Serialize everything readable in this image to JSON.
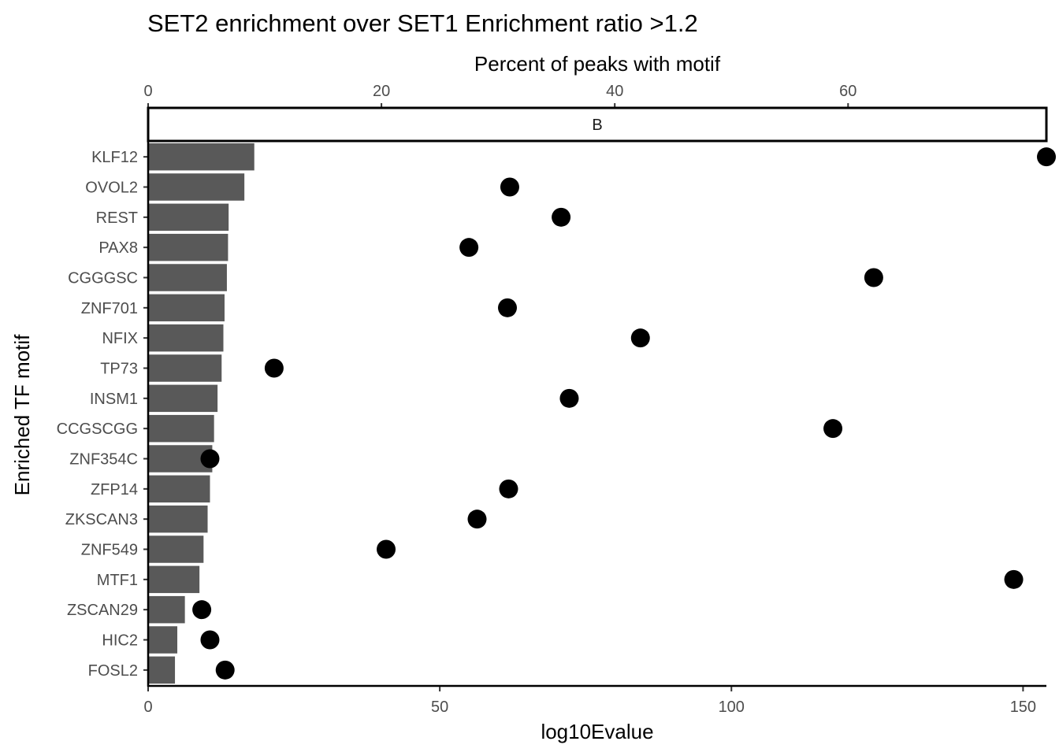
{
  "chart_data": {
    "type": "bar",
    "title": "SET2 enrichment over SET1 Enrichment ratio >1.2",
    "facet_label": "B",
    "xlabel": "log10Evalue",
    "ylabel": "Enriched TF motif",
    "secondary_xlabel": "Percent of peaks with motif",
    "xlim": [
      0,
      154
    ],
    "secondary_xlim": [
      0,
      77
    ],
    "x_ticks": [
      0,
      50,
      100,
      150
    ],
    "secondary_x_ticks": [
      0,
      20,
      40,
      60
    ],
    "grid": false,
    "categories": [
      "KLF12",
      "OVOL2",
      "REST",
      "PAX8",
      "CGGGSC",
      "ZNF701",
      "NFIX",
      "TP73",
      "INSM1",
      "CCGSCGG",
      "ZNF354C",
      "ZFP14",
      "ZKSCAN3",
      "ZNF549",
      "MTF1",
      "ZSCAN29",
      "HIC2",
      "FOSL2"
    ],
    "series": [
      {
        "mark": "bar",
        "axis": "bottom",
        "values": [
          18.2,
          16.5,
          13.8,
          13.7,
          13.5,
          13.1,
          12.9,
          12.6,
          11.9,
          11.3,
          11.0,
          10.6,
          10.2,
          9.5,
          8.8,
          6.3,
          5.0,
          4.6
        ],
        "color": "#595959"
      },
      {
        "mark": "point",
        "axis": "top",
        "values": [
          77.0,
          31.0,
          35.4,
          27.5,
          62.2,
          30.8,
          42.2,
          10.8,
          36.1,
          58.7,
          5.3,
          30.9,
          28.2,
          20.4,
          74.2,
          4.6,
          5.3,
          6.6
        ],
        "color": "#000000"
      }
    ]
  }
}
